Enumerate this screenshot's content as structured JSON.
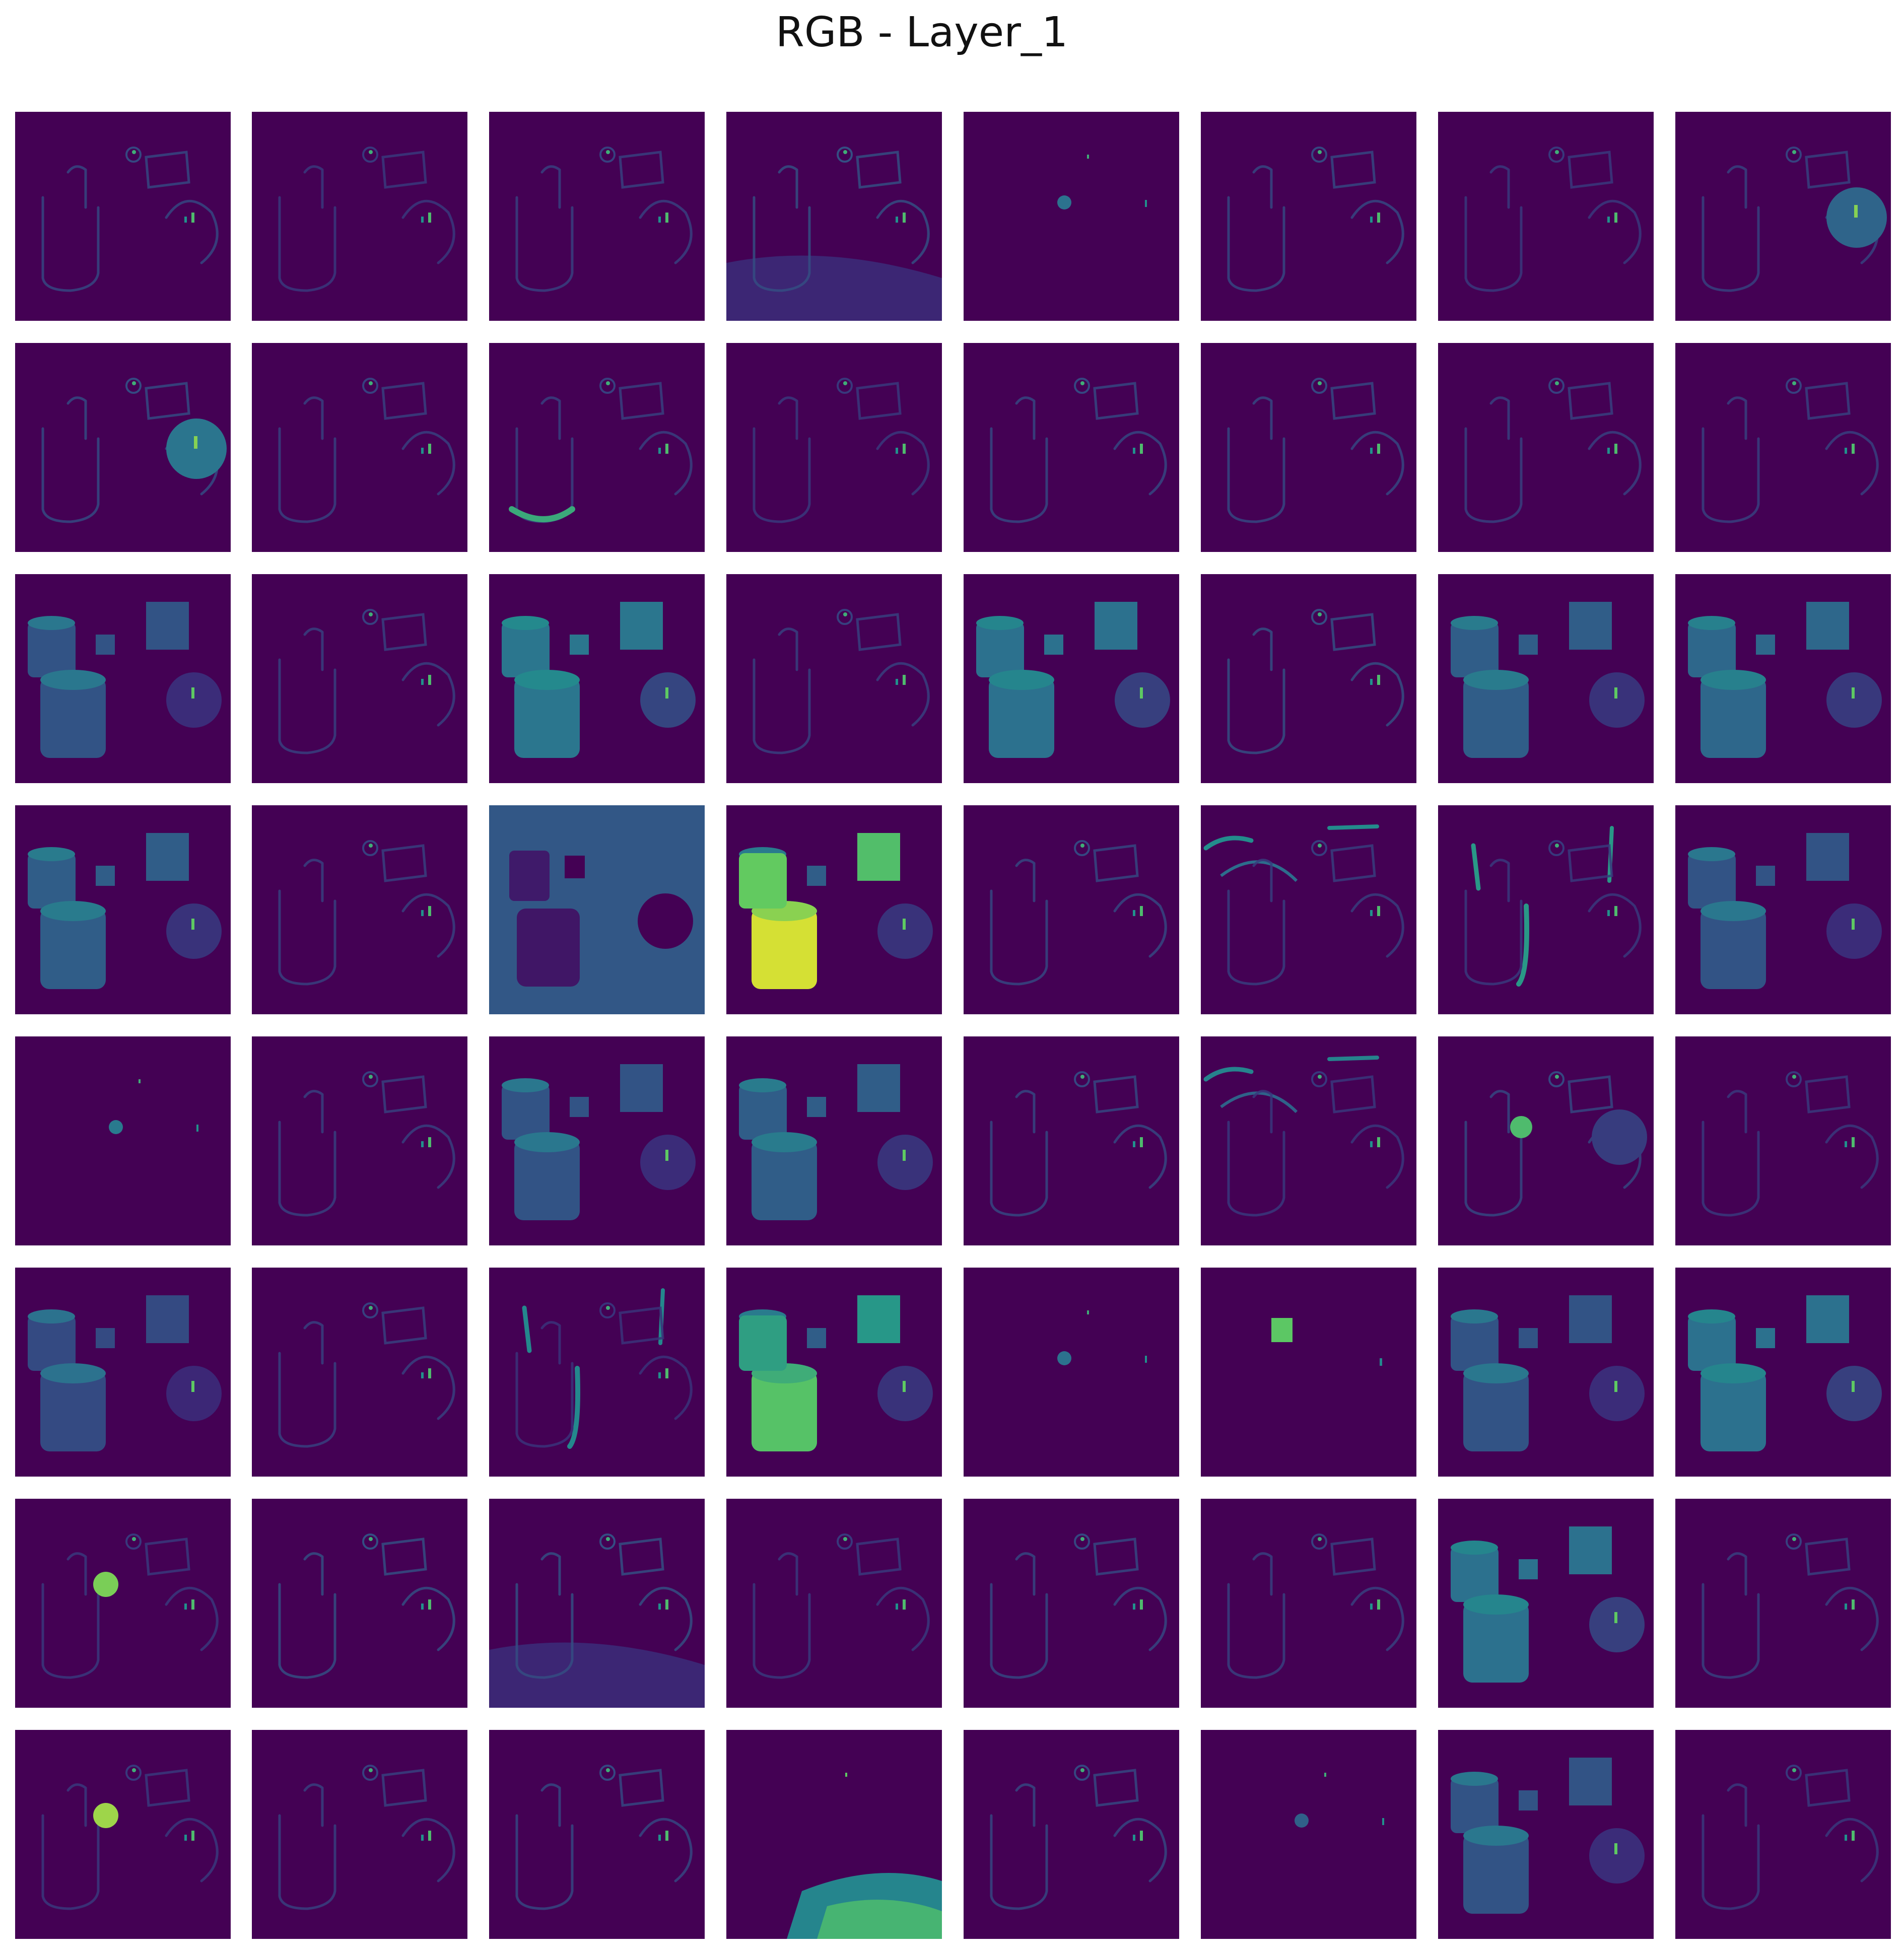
{
  "figure": {
    "title": "RGB - Layer_1",
    "rows": 8,
    "cols": 8,
    "colormap": "viridis",
    "colors": {
      "background": "#440154",
      "low": "#3b2a78",
      "mid": "#2c728e",
      "high": "#21918c",
      "bright": "#5ec962",
      "peak": "#fde725"
    }
  },
  "feature_maps": [
    {
      "channel": 1,
      "style": "edges",
      "intensity": 0.25
    },
    {
      "channel": 2,
      "style": "edges",
      "intensity": 0.15
    },
    {
      "channel": 3,
      "style": "edges",
      "intensity": 0.2
    },
    {
      "channel": 4,
      "style": "edges-floor",
      "intensity": 0.3
    },
    {
      "channel": 5,
      "style": "spots",
      "intensity": 0.15
    },
    {
      "channel": 6,
      "style": "edges",
      "intensity": 0.25
    },
    {
      "channel": 7,
      "style": "edges",
      "intensity": 0.15
    },
    {
      "channel": 8,
      "style": "sphere",
      "intensity": 0.35
    },
    {
      "channel": 9,
      "style": "sphere",
      "intensity": 0.45
    },
    {
      "channel": 10,
      "style": "edges",
      "intensity": 0.2
    },
    {
      "channel": 11,
      "style": "cyl-base",
      "intensity": 0.45
    },
    {
      "channel": 12,
      "style": "edges",
      "intensity": 0.15
    },
    {
      "channel": 13,
      "style": "edges",
      "intensity": 0.25
    },
    {
      "channel": 14,
      "style": "edges",
      "intensity": 0.25
    },
    {
      "channel": 15,
      "style": "edges",
      "intensity": 0.2
    },
    {
      "channel": 16,
      "style": "edges",
      "intensity": 0.2
    },
    {
      "channel": 17,
      "style": "objects",
      "intensity": 0.3
    },
    {
      "channel": 18,
      "style": "edges",
      "intensity": 0.2
    },
    {
      "channel": 19,
      "style": "objects",
      "intensity": 0.5
    },
    {
      "channel": 20,
      "style": "edges",
      "intensity": 0.2
    },
    {
      "channel": 21,
      "style": "objects",
      "intensity": 0.45
    },
    {
      "channel": 22,
      "style": "edges",
      "intensity": 0.3
    },
    {
      "channel": 23,
      "style": "objects",
      "intensity": 0.35
    },
    {
      "channel": 24,
      "style": "objects",
      "intensity": 0.4
    },
    {
      "channel": 25,
      "style": "objects",
      "intensity": 0.35
    },
    {
      "channel": 26,
      "style": "edges",
      "intensity": 0.2
    },
    {
      "channel": 27,
      "style": "inverted",
      "intensity": 0.35
    },
    {
      "channel": 28,
      "style": "bright-cyl",
      "intensity": 0.9
    },
    {
      "channel": 29,
      "style": "edges",
      "intensity": 0.25
    },
    {
      "channel": 30,
      "style": "top-edges",
      "intensity": 0.45
    },
    {
      "channel": 31,
      "style": "vertical-edges",
      "intensity": 0.5
    },
    {
      "channel": 32,
      "style": "objects",
      "intensity": 0.3
    },
    {
      "channel": 33,
      "style": "spots",
      "intensity": 0.2
    },
    {
      "channel": 34,
      "style": "edges",
      "intensity": 0.2
    },
    {
      "channel": 35,
      "style": "objects",
      "intensity": 0.3
    },
    {
      "channel": 36,
      "style": "objects",
      "intensity": 0.35
    },
    {
      "channel": 37,
      "style": "edges",
      "intensity": 0.25
    },
    {
      "channel": 38,
      "style": "top-edges",
      "intensity": 0.35
    },
    {
      "channel": 39,
      "style": "green-ball",
      "intensity": 0.5
    },
    {
      "channel": 40,
      "style": "edges",
      "intensity": 0.15
    },
    {
      "channel": 41,
      "style": "objects",
      "intensity": 0.25
    },
    {
      "channel": 42,
      "style": "edges",
      "intensity": 0.2
    },
    {
      "channel": 43,
      "style": "vertical-edges",
      "intensity": 0.35
    },
    {
      "channel": 44,
      "style": "bright-cyl",
      "intensity": 0.55
    },
    {
      "channel": 45,
      "style": "spots",
      "intensity": 0.15
    },
    {
      "channel": 46,
      "style": "green-cube",
      "intensity": 0.55
    },
    {
      "channel": 47,
      "style": "objects",
      "intensity": 0.3
    },
    {
      "channel": 48,
      "style": "objects",
      "intensity": 0.45
    },
    {
      "channel": 49,
      "style": "yellow-ball",
      "intensity": 0.45
    },
    {
      "channel": 50,
      "style": "edges",
      "intensity": 0.3
    },
    {
      "channel": 51,
      "style": "edges-floor",
      "intensity": 0.3
    },
    {
      "channel": 52,
      "style": "edges",
      "intensity": 0.15
    },
    {
      "channel": 53,
      "style": "edges",
      "intensity": 0.25
    },
    {
      "channel": 54,
      "style": "edges",
      "intensity": 0.2
    },
    {
      "channel": 55,
      "style": "objects",
      "intensity": 0.45
    },
    {
      "channel": 56,
      "style": "edges",
      "intensity": 0.2
    },
    {
      "channel": 57,
      "style": "yellow-ball",
      "intensity": 0.6
    },
    {
      "channel": 58,
      "style": "edges",
      "intensity": 0.2
    },
    {
      "channel": 59,
      "style": "edges",
      "intensity": 0.25
    },
    {
      "channel": 60,
      "style": "floor-glow",
      "intensity": 0.55
    },
    {
      "channel": 61,
      "style": "edges",
      "intensity": 0.25
    },
    {
      "channel": 62,
      "style": "spots",
      "intensity": 0.1
    },
    {
      "channel": 63,
      "style": "objects",
      "intensity": 0.3
    },
    {
      "channel": 64,
      "style": "edges",
      "intensity": 0.15
    }
  ]
}
